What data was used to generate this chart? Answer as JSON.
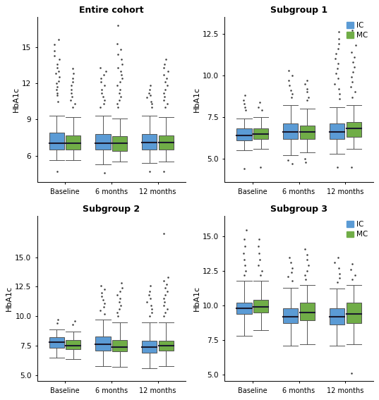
{
  "titles": [
    "Entire cohort",
    "Subgroup 1",
    "Subgroup 2",
    "Subgroup 3"
  ],
  "x_labels": [
    "Baseline",
    "6 months",
    "12 months"
  ],
  "ylabel": "HbA1c",
  "ic_color": "#5b9bd5",
  "mc_color": "#70ad47",
  "legend_labels": [
    "IC",
    "MC"
  ],
  "background_color": "#ffffff",
  "panels": {
    "entire_cohort": {
      "ylim": [
        3.8,
        17.5
      ],
      "yticks": [
        6,
        9,
        12,
        15
      ],
      "boxes": {
        "IC": [
          {
            "med": 7.0,
            "q1": 6.5,
            "q3": 7.9,
            "whislo": 5.6,
            "whishi": 9.3,
            "fliers_low": [
              4.7
            ],
            "fliers_high": [
              10.5,
              11.0,
              11.2,
              11.5,
              11.7,
              12.0,
              12.2,
              12.5,
              12.8,
              13.0,
              13.3,
              13.6,
              14.0,
              14.3,
              14.7,
              15.2,
              15.6
            ]
          },
          {
            "med": 7.0,
            "q1": 6.5,
            "q3": 7.8,
            "whislo": 5.3,
            "whishi": 9.3,
            "fliers_low": [
              4.6
            ],
            "fliers_high": [
              10.0,
              10.3,
              10.6,
              10.9,
              11.2,
              11.5,
              11.8,
              12.1,
              12.4,
              12.7,
              13.0,
              13.3
            ]
          },
          {
            "med": 7.1,
            "q1": 6.5,
            "q3": 7.8,
            "whislo": 5.4,
            "whishi": 9.3,
            "fliers_low": [
              4.7
            ],
            "fliers_high": [
              10.0,
              10.3,
              10.5,
              10.8,
              11.0,
              11.2,
              11.5,
              11.8
            ]
          }
        ],
        "MC": [
          {
            "med": 7.0,
            "q1": 6.5,
            "q3": 7.7,
            "whislo": 5.6,
            "whishi": 9.2,
            "fliers_low": [],
            "fliers_high": [
              10.0,
              10.3,
              10.6,
              10.9,
              11.2,
              11.5,
              11.8,
              12.1,
              12.4,
              12.8,
              13.2
            ]
          },
          {
            "med": 7.0,
            "q1": 6.4,
            "q3": 7.6,
            "whislo": 5.5,
            "whishi": 9.1,
            "fliers_low": [],
            "fliers_high": [
              10.0,
              10.3,
              10.6,
              10.9,
              11.2,
              11.5,
              11.8,
              12.1,
              12.4,
              12.7,
              13.0,
              13.3,
              13.6,
              14.0,
              14.4,
              14.8,
              15.3,
              16.8
            ]
          },
          {
            "med": 7.1,
            "q1": 6.5,
            "q3": 7.7,
            "whislo": 5.5,
            "whishi": 9.2,
            "fliers_low": [
              4.7
            ],
            "fliers_high": [
              10.0,
              10.3,
              10.6,
              10.9,
              11.2,
              11.5,
              11.8,
              12.1,
              12.4,
              12.7,
              13.0,
              13.3,
              13.6,
              14.0
            ]
          }
        ]
      }
    },
    "subgroup1": {
      "ylim": [
        3.6,
        13.5
      ],
      "yticks": [
        5.0,
        7.5,
        10.0,
        12.5
      ],
      "boxes": {
        "IC": [
          {
            "med": 6.4,
            "q1": 6.1,
            "q3": 6.8,
            "whislo": 5.5,
            "whishi": 7.4,
            "fliers_low": [
              4.4
            ],
            "fliers_high": [
              7.9,
              8.1,
              8.3,
              8.5,
              8.8
            ]
          },
          {
            "med": 6.6,
            "q1": 6.2,
            "q3": 7.1,
            "whislo": 5.2,
            "whishi": 8.2,
            "fliers_low": [
              4.7,
              4.9
            ],
            "fliers_high": [
              8.7,
              8.9,
              9.1,
              9.4,
              9.7,
              10.0,
              10.3
            ]
          },
          {
            "med": 6.6,
            "q1": 6.2,
            "q3": 7.1,
            "whislo": 5.3,
            "whishi": 8.1,
            "fliers_low": [
              4.5
            ],
            "fliers_high": [
              8.6,
              8.9,
              9.2,
              9.5,
              9.8,
              10.1,
              10.4,
              10.7,
              11.0,
              11.3,
              11.6,
              11.9,
              12.2,
              12.6
            ]
          }
        ],
        "MC": [
          {
            "med": 6.5,
            "q1": 6.2,
            "q3": 6.8,
            "whislo": 5.6,
            "whishi": 7.5,
            "fliers_low": [
              4.5
            ],
            "fliers_high": [
              7.9,
              8.1,
              8.4
            ]
          },
          {
            "med": 6.6,
            "q1": 6.2,
            "q3": 7.0,
            "whislo": 5.4,
            "whishi": 8.0,
            "fliers_low": [
              4.8,
              5.0
            ],
            "fliers_high": [
              8.5,
              8.7,
              9.0,
              9.2,
              9.5,
              9.7
            ]
          },
          {
            "med": 6.8,
            "q1": 6.3,
            "q3": 7.2,
            "whislo": 5.6,
            "whishi": 8.2,
            "fliers_low": [
              4.5
            ],
            "fliers_high": [
              8.7,
              9.0,
              9.3,
              9.6,
              9.9,
              10.2,
              10.5,
              10.8,
              11.1,
              11.4,
              11.8,
              12.3,
              12.7
            ]
          }
        ]
      }
    },
    "subgroup2": {
      "ylim": [
        4.5,
        18.5
      ],
      "yticks": [
        5.0,
        7.5,
        10.0,
        12.5,
        15.0
      ],
      "boxes": {
        "IC": [
          {
            "med": 7.8,
            "q1": 7.3,
            "q3": 8.2,
            "whislo": 6.5,
            "whishi": 8.9,
            "fliers_low": [],
            "fliers_high": [
              9.4,
              9.7
            ]
          },
          {
            "med": 7.6,
            "q1": 7.1,
            "q3": 8.3,
            "whislo": 5.8,
            "whishi": 9.7,
            "fliers_low": [],
            "fliers_high": [
              10.2,
              10.5,
              10.8,
              11.1,
              11.4,
              11.7,
              12.0,
              12.3,
              12.6
            ]
          },
          {
            "med": 7.4,
            "q1": 6.9,
            "q3": 7.9,
            "whislo": 5.6,
            "whishi": 9.5,
            "fliers_low": [],
            "fliers_high": [
              10.0,
              10.3,
              10.6,
              10.9,
              11.2,
              11.5,
              11.8,
              12.1,
              12.6
            ]
          }
        ],
        "MC": [
          {
            "med": 7.5,
            "q1": 7.2,
            "q3": 8.0,
            "whislo": 6.4,
            "whishi": 8.7,
            "fliers_low": [],
            "fliers_high": [
              9.3,
              9.6
            ]
          },
          {
            "med": 7.4,
            "q1": 7.0,
            "q3": 8.0,
            "whislo": 5.7,
            "whishi": 9.5,
            "fliers_low": [],
            "fliers_high": [
              10.0,
              10.3,
              10.6,
              10.9,
              11.2,
              11.5,
              11.8,
              12.1,
              12.4,
              12.8
            ]
          },
          {
            "med": 7.5,
            "q1": 7.1,
            "q3": 7.9,
            "whislo": 5.8,
            "whishi": 9.5,
            "fliers_low": [],
            "fliers_high": [
              10.0,
              10.3,
              10.6,
              10.9,
              11.2,
              11.5,
              11.8,
              12.1,
              12.4,
              12.7,
              13.0,
              13.3,
              17.0
            ]
          }
        ]
      }
    },
    "subgroup3": {
      "ylim": [
        4.5,
        16.5
      ],
      "yticks": [
        5.0,
        7.5,
        10.0,
        12.5,
        15.0
      ],
      "boxes": {
        "IC": [
          {
            "med": 9.8,
            "q1": 9.4,
            "q3": 10.2,
            "whislo": 7.8,
            "whishi": 11.8,
            "fliers_low": [],
            "fliers_high": [
              12.2,
              12.5,
              12.9,
              13.3,
              13.8,
              14.3,
              14.8,
              15.5
            ]
          },
          {
            "med": 9.2,
            "q1": 8.7,
            "q3": 9.8,
            "whislo": 7.1,
            "whishi": 11.3,
            "fliers_low": [],
            "fliers_high": [
              11.8,
              12.1,
              12.4,
              12.7,
              13.1,
              13.5
            ]
          },
          {
            "med": 9.2,
            "q1": 8.6,
            "q3": 9.8,
            "whislo": 7.1,
            "whishi": 11.2,
            "fliers_low": [],
            "fliers_high": [
              11.7,
              12.0,
              12.3,
              12.7,
              13.1,
              13.5
            ]
          }
        ],
        "MC": [
          {
            "med": 9.9,
            "q1": 9.5,
            "q3": 10.4,
            "whislo": 8.2,
            "whishi": 11.8,
            "fliers_low": [],
            "fliers_high": [
              12.2,
              12.5,
              12.9,
              13.3,
              13.8,
              14.3,
              14.8
            ]
          },
          {
            "med": 9.5,
            "q1": 8.9,
            "q3": 10.2,
            "whislo": 7.2,
            "whishi": 11.5,
            "fliers_low": [],
            "fliers_high": [
              11.9,
              12.2,
              12.5,
              12.9,
              13.3,
              13.7,
              14.1
            ]
          },
          {
            "med": 9.4,
            "q1": 8.7,
            "q3": 10.2,
            "whislo": 7.2,
            "whishi": 11.5,
            "fliers_low": [
              5.1
            ],
            "fliers_high": [
              11.9,
              12.2,
              12.6,
              13.0
            ]
          }
        ]
      }
    }
  }
}
